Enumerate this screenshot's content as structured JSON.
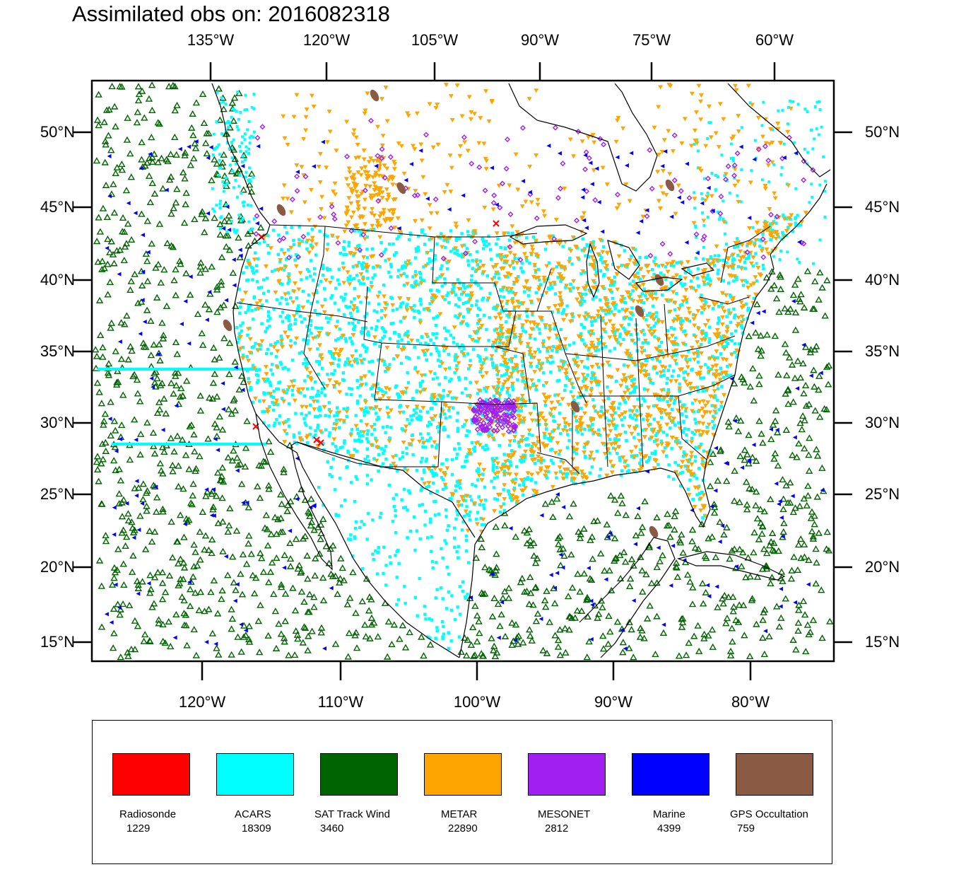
{
  "title": "Assimilated obs on: 2016082318",
  "axes": {
    "top_labels": [
      "135°W",
      "120°W",
      "105°W",
      "90°W",
      "75°W",
      "60°W"
    ],
    "bottom_labels": [
      "120°W",
      "110°W",
      "100°W",
      "90°W",
      "80°W"
    ],
    "lat_labels": [
      "50°N",
      "45°N",
      "40°N",
      "35°N",
      "30°N",
      "25°N",
      "20°N",
      "15°N"
    ]
  },
  "colors": {
    "radiosonde": "#ff0000",
    "acars": "#00ffff",
    "sat_track_wind": "#006400",
    "metar": "#ffa500",
    "mesonet": "#a020f0",
    "marine": "#0000ff",
    "gps_occultation": "#8b5a44"
  },
  "legend": [
    {
      "label": "Radiosonde",
      "count": "1229",
      "color": "#ff0000"
    },
    {
      "label": "ACARS",
      "count": "18309",
      "color": "#00ffff"
    },
    {
      "label": "SAT Track Wind",
      "count": "3460",
      "color": "#006400"
    },
    {
      "label": "METAR",
      "count": "22890",
      "color": "#ffa500"
    },
    {
      "label": "MESONET",
      "count": "2812",
      "color": "#a020f0"
    },
    {
      "label": "Marine",
      "count": "4399",
      "color": "#0000ff"
    },
    {
      "label": "GPS Occultation",
      "count": "759",
      "color": "#8b5a44"
    }
  ]
}
